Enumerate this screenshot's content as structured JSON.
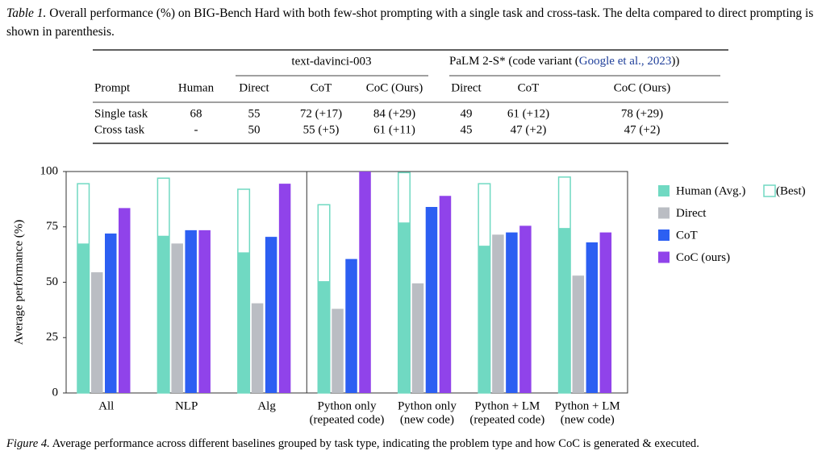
{
  "table": {
    "label": "Table 1.",
    "caption": "Overall performance (%) on BIG-Bench Hard with both few-shot prompting with a single task and cross-task. The delta compared to direct prompting is shown in parenthesis.",
    "group_1": "text-davinci-003",
    "group_2": {
      "prefix": "PaLM 2-S* (code variant (",
      "citation": "Google et al., 2023",
      "suffix": "))"
    },
    "header": [
      "Prompt",
      "Human",
      "Direct",
      "CoT",
      "CoC (Ours)",
      "Direct",
      "CoT",
      "CoC (Ours)"
    ],
    "rows": [
      [
        "Single task",
        "68",
        "55",
        "72 (+17)",
        "84 (+29)",
        "49",
        "61 (+12)",
        "78 (+29)"
      ],
      [
        "Cross task",
        "-",
        "50",
        "55 (+5)",
        "61 (+11)",
        "45",
        "47 (+2)",
        "47 (+2)"
      ]
    ]
  },
  "chart_data": {
    "type": "bar",
    "y_label": "Average performance (%)",
    "categories": [
      [
        "All"
      ],
      [
        "NLP"
      ],
      [
        "Alg"
      ],
      [
        "Python only",
        "(repeated code)"
      ],
      [
        "Python only",
        "(new code)"
      ],
      [
        "Python + LM",
        "(repeated code)"
      ],
      [
        "Python + LM",
        "(new code)"
      ]
    ],
    "series": [
      {
        "name": "Human (Avg.)",
        "color": "#70d9c2",
        "values": [
          67.5,
          71,
          63.5,
          50.5,
          77,
          66.5,
          74.5
        ]
      },
      {
        "name": "(Best)",
        "color": "#70d9c2",
        "outline": true,
        "values": [
          94.5,
          97,
          92,
          85,
          99.5,
          94.5,
          97.5
        ]
      },
      {
        "name": "Direct",
        "color": "#babdc3",
        "values": [
          54.5,
          67.5,
          40.5,
          38,
          49.5,
          71.5,
          53
        ]
      },
      {
        "name": "CoT",
        "color": "#2c5ff2",
        "values": [
          72,
          73.5,
          70.5,
          60.5,
          84,
          72.5,
          68
        ]
      },
      {
        "name": "CoC (ours)",
        "color": "#9043ea",
        "values": [
          83.5,
          73.5,
          94.5,
          100,
          89,
          75.5,
          72.5
        ]
      }
    ],
    "ylim": [
      0,
      100
    ],
    "yticks": [
      0,
      25,
      50,
      75,
      100
    ],
    "grid": false
  },
  "figure": {
    "label": "Figure 4.",
    "caption": "Average performance across different baselines grouped by task type, indicating the problem type and how CoC is generated & executed."
  }
}
